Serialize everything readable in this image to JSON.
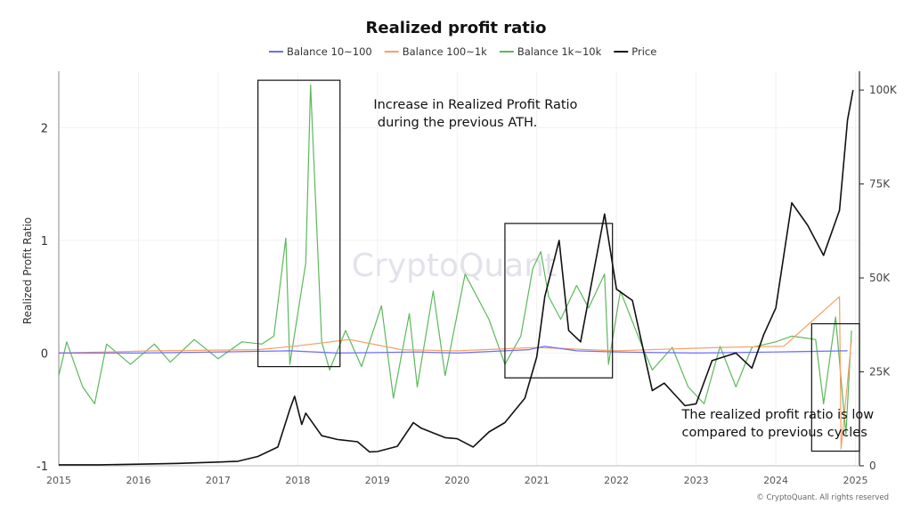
{
  "chart_data": {
    "type": "line",
    "title": "Realized profit ratio",
    "ylabel": "Realized Profit Ratio",
    "ylim": [
      -1,
      2.5
    ],
    "y2lim": [
      0,
      105000
    ],
    "xlim": [
      2015,
      2025.05
    ],
    "x_ticks": [
      2015,
      2016,
      2017,
      2018,
      2019,
      2020,
      2021,
      2022,
      2023,
      2024,
      2025
    ],
    "y_ticks": [
      -1,
      0,
      1,
      2
    ],
    "y2_ticks": [
      {
        "value": 0,
        "label": "0"
      },
      {
        "value": 25000,
        "label": "25K"
      },
      {
        "value": 50000,
        "label": "50K"
      },
      {
        "value": 75000,
        "label": "75K"
      },
      {
        "value": 100000,
        "label": "100K"
      }
    ],
    "legend_position": "top-center",
    "watermark": "CryptoQuant",
    "copyright": "© CryptoQuant. All rights reserved",
    "series": [
      {
        "name": "Balance 10~100",
        "color": "#6b6bff",
        "axis": "left",
        "points": [
          [
            2015.0,
            0.0
          ],
          [
            2016.0,
            0.0
          ],
          [
            2017.0,
            0.01
          ],
          [
            2017.9,
            0.02
          ],
          [
            2018.5,
            0.0
          ],
          [
            2019.5,
            0.01
          ],
          [
            2020.0,
            0.0
          ],
          [
            2020.9,
            0.03
          ],
          [
            2021.1,
            0.06
          ],
          [
            2021.5,
            0.02
          ],
          [
            2022.0,
            0.01
          ],
          [
            2023.0,
            0.0
          ],
          [
            2024.0,
            0.01
          ],
          [
            2024.9,
            0.02
          ]
        ]
      },
      {
        "name": "Balance 100~1k",
        "color": "#f5a162",
        "axis": "left",
        "points": [
          [
            2015.0,
            0.0
          ],
          [
            2016.2,
            0.02
          ],
          [
            2017.5,
            0.03
          ],
          [
            2017.95,
            0.06
          ],
          [
            2018.65,
            0.12
          ],
          [
            2019.3,
            0.03
          ],
          [
            2020.0,
            0.02
          ],
          [
            2021.0,
            0.05
          ],
          [
            2022.0,
            0.02
          ],
          [
            2023.3,
            0.05
          ],
          [
            2024.1,
            0.06
          ],
          [
            2024.8,
            0.5
          ],
          [
            2024.82,
            -0.85
          ],
          [
            2024.95,
            0.12
          ]
        ]
      },
      {
        "name": "Balance 1k~10k",
        "color": "#5cb85c",
        "axis": "left",
        "points": [
          [
            2015.0,
            -0.2
          ],
          [
            2015.1,
            0.1
          ],
          [
            2015.3,
            -0.3
          ],
          [
            2015.45,
            -0.45
          ],
          [
            2015.6,
            0.08
          ],
          [
            2015.9,
            -0.1
          ],
          [
            2016.2,
            0.08
          ],
          [
            2016.4,
            -0.08
          ],
          [
            2016.7,
            0.12
          ],
          [
            2017.0,
            -0.05
          ],
          [
            2017.3,
            0.1
          ],
          [
            2017.55,
            0.08
          ],
          [
            2017.7,
            0.15
          ],
          [
            2017.85,
            1.02
          ],
          [
            2017.9,
            -0.1
          ],
          [
            2018.1,
            0.8
          ],
          [
            2018.16,
            2.38
          ],
          [
            2018.3,
            0.1
          ],
          [
            2018.4,
            -0.15
          ],
          [
            2018.6,
            0.2
          ],
          [
            2018.8,
            -0.12
          ],
          [
            2019.05,
            0.42
          ],
          [
            2019.2,
            -0.4
          ],
          [
            2019.4,
            0.35
          ],
          [
            2019.5,
            -0.3
          ],
          [
            2019.7,
            0.55
          ],
          [
            2019.85,
            -0.2
          ],
          [
            2020.1,
            0.7
          ],
          [
            2020.4,
            0.3
          ],
          [
            2020.6,
            -0.1
          ],
          [
            2020.8,
            0.15
          ],
          [
            2020.95,
            0.75
          ],
          [
            2021.05,
            0.9
          ],
          [
            2021.15,
            0.5
          ],
          [
            2021.3,
            0.3
          ],
          [
            2021.5,
            0.6
          ],
          [
            2021.65,
            0.4
          ],
          [
            2021.85,
            0.7
          ],
          [
            2021.9,
            -0.1
          ],
          [
            2022.05,
            0.55
          ],
          [
            2022.3,
            0.1
          ],
          [
            2022.45,
            -0.15
          ],
          [
            2022.7,
            0.05
          ],
          [
            2022.9,
            -0.3
          ],
          [
            2023.1,
            -0.45
          ],
          [
            2023.3,
            0.06
          ],
          [
            2023.5,
            -0.3
          ],
          [
            2023.7,
            0.05
          ],
          [
            2024.0,
            0.1
          ],
          [
            2024.2,
            0.15
          ],
          [
            2024.5,
            0.12
          ],
          [
            2024.6,
            -0.45
          ],
          [
            2024.75,
            0.32
          ],
          [
            2024.88,
            -0.72
          ],
          [
            2024.95,
            0.2
          ]
        ]
      },
      {
        "name": "Price",
        "color": "#111111",
        "axis": "right",
        "points": [
          [
            2015.0,
            250
          ],
          [
            2015.5,
            260
          ],
          [
            2016.0,
            430
          ],
          [
            2016.5,
            650
          ],
          [
            2017.0,
            1000
          ],
          [
            2017.25,
            1200
          ],
          [
            2017.5,
            2500
          ],
          [
            2017.75,
            5000
          ],
          [
            2017.9,
            15000
          ],
          [
            2017.96,
            18500
          ],
          [
            2018.05,
            11000
          ],
          [
            2018.1,
            14000
          ],
          [
            2018.3,
            8000
          ],
          [
            2018.5,
            7000
          ],
          [
            2018.75,
            6400
          ],
          [
            2018.9,
            3700
          ],
          [
            2019.0,
            3800
          ],
          [
            2019.25,
            5200
          ],
          [
            2019.45,
            11500
          ],
          [
            2019.55,
            10000
          ],
          [
            2019.85,
            7500
          ],
          [
            2020.0,
            7200
          ],
          [
            2020.2,
            5000
          ],
          [
            2020.4,
            9000
          ],
          [
            2020.6,
            11500
          ],
          [
            2020.85,
            18000
          ],
          [
            2021.0,
            29000
          ],
          [
            2021.1,
            45000
          ],
          [
            2021.28,
            60000
          ],
          [
            2021.4,
            36000
          ],
          [
            2021.55,
            33000
          ],
          [
            2021.7,
            50000
          ],
          [
            2021.85,
            67000
          ],
          [
            2022.0,
            47000
          ],
          [
            2022.2,
            44000
          ],
          [
            2022.45,
            20000
          ],
          [
            2022.6,
            22000
          ],
          [
            2022.86,
            16000
          ],
          [
            2023.0,
            16500
          ],
          [
            2023.2,
            28000
          ],
          [
            2023.5,
            30000
          ],
          [
            2023.7,
            26000
          ],
          [
            2023.85,
            35000
          ],
          [
            2024.0,
            42000
          ],
          [
            2024.2,
            70000
          ],
          [
            2024.4,
            64000
          ],
          [
            2024.6,
            56000
          ],
          [
            2024.8,
            68000
          ],
          [
            2024.9,
            92000
          ],
          [
            2024.97,
            100000
          ]
        ]
      }
    ],
    "annotations": [
      {
        "text": [
          "Increase in Realized Profit Ratio",
          " during the previous ATH."
        ],
        "x": 2018.95,
        "y": 2.17
      },
      {
        "text": [
          "The realized profit ratio is low",
          "compared to previous cycles"
        ],
        "x": 2022.82,
        "y": -0.58
      }
    ],
    "highlight_boxes": [
      {
        "x0": 2017.5,
        "x1": 2018.53,
        "y0": -0.12,
        "y1": 2.42
      },
      {
        "x0": 2020.6,
        "x1": 2021.95,
        "y0": -0.22,
        "y1": 1.15
      },
      {
        "x0": 2024.45,
        "x1": 2025.05,
        "y0": -0.87,
        "y1": 0.26
      }
    ]
  }
}
